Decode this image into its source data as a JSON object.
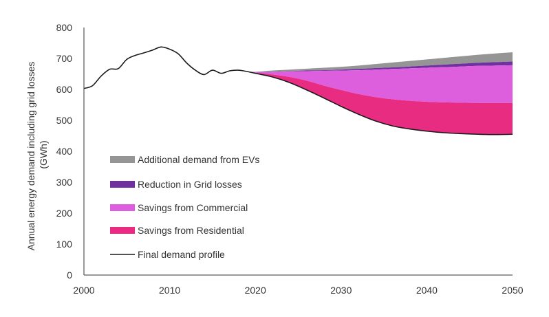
{
  "chart_data": {
    "type": "area",
    "title": "",
    "ylabel_lines": [
      "Annual energy demand including grid losses",
      "(GWh)"
    ],
    "xlabel": "",
    "xlim": [
      2000,
      2050
    ],
    "ylim": [
      0,
      800
    ],
    "x_ticks": [
      "2000",
      "2010",
      "2020",
      "2030",
      "2040",
      "2050"
    ],
    "y_ticks": [
      "0",
      "100",
      "200",
      "300",
      "400",
      "500",
      "600",
      "700",
      "800"
    ],
    "grid": false,
    "legend_position": "center-left",
    "historical": {
      "x": [
        2000,
        2001,
        2002,
        2003,
        2004,
        2005,
        2006,
        2007,
        2008,
        2009,
        2010,
        2011,
        2012,
        2013,
        2014,
        2015,
        2016,
        2017,
        2018,
        2019
      ],
      "y": [
        603,
        612,
        643,
        665,
        667,
        697,
        710,
        718,
        727,
        737,
        730,
        715,
        685,
        662,
        648,
        662,
        652,
        660,
        662,
        658
      ]
    },
    "projection": {
      "x": [
        2019,
        2020,
        2022,
        2024,
        2026,
        2028,
        2030,
        2032,
        2034,
        2036,
        2038,
        2040,
        2042,
        2044,
        2046,
        2048,
        2050
      ],
      "final_demand": [
        658,
        652,
        640,
        622,
        598,
        572,
        545,
        520,
        498,
        482,
        472,
        465,
        460,
        457,
        455,
        454,
        455
      ],
      "residential_top": [
        658,
        654,
        648,
        640,
        628,
        612,
        598,
        585,
        575,
        568,
        563,
        560,
        558,
        557,
        556,
        556,
        556
      ],
      "commercial_top": [
        658,
        656,
        656,
        658,
        659,
        660,
        661,
        662,
        664,
        666,
        668,
        670,
        672,
        674,
        676,
        677,
        678
      ],
      "grid_losses_top": [
        658,
        656,
        657,
        659,
        661,
        662,
        664,
        666,
        669,
        671,
        674,
        677,
        680,
        683,
        686,
        688,
        690
      ],
      "ev_top": [
        658,
        657,
        661,
        664,
        667,
        670,
        673,
        677,
        682,
        687,
        692,
        697,
        702,
        707,
        712,
        716,
        720
      ]
    },
    "series": [
      {
        "name": "Additional demand from EVs",
        "color": "#959595"
      },
      {
        "name": "Reduction in Grid losses",
        "color": "#7030a0"
      },
      {
        "name": "Savings from Commercial",
        "color": "#dd5fdd"
      },
      {
        "name": "Savings from Residential",
        "color": "#e82c82"
      },
      {
        "name": "Final demand profile",
        "color": "#1a1a1a"
      }
    ]
  }
}
